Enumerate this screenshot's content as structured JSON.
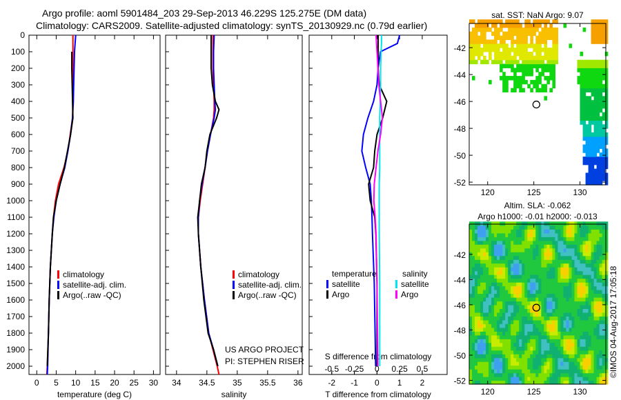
{
  "title_line1": "Argo profile: aoml 5901484_203 29-Sep-2013 46.229S 125.275E (DM data)",
  "title_line2": "Climatology: CARS2009. Satellite-adjusted climatology: synTS_20130929.nc (0.79d earlier)",
  "watermark": "©IMOS 04-Aug-2017 17:05:18",
  "colors": {
    "climatology": "#ff0000",
    "satellite": "#0000ff",
    "argo": "#000000",
    "s_satellite": "#00e5ee",
    "s_argo": "#ff00ff"
  },
  "chart_data": [
    {
      "type": "line",
      "id": "temperature",
      "xlabel": "temperature (deg C)",
      "xlim": [
        -2,
        31.7
      ],
      "ylim": [
        2050,
        0
      ],
      "xticks": [
        0,
        5,
        10,
        15,
        20,
        25,
        30
      ],
      "yticks": [
        0,
        100,
        200,
        300,
        400,
        500,
        600,
        700,
        800,
        900,
        1000,
        1100,
        1200,
        1300,
        1400,
        1500,
        1600,
        1700,
        1800,
        1900,
        2000
      ],
      "legend": [
        "climatology",
        "satellite-adj. clim.",
        "Argo(..raw -QC)"
      ],
      "depth": [
        0,
        100,
        200,
        300,
        400,
        500,
        600,
        700,
        800,
        900,
        1000,
        1100,
        1200,
        1400,
        1600,
        1800,
        2000,
        2050
      ],
      "series": [
        {
          "name": "climatology",
          "values": [
            9.3,
            9.3,
            9.3,
            9.3,
            9.3,
            9.2,
            8.6,
            8.0,
            7.0,
            5.6,
            4.8,
            4.3,
            4.0,
            3.5,
            3.2,
            3.0,
            2.7,
            2.6
          ]
        },
        {
          "name": "satellite-adj. clim.",
          "values": [
            10.0,
            9.7,
            9.6,
            9.5,
            9.4,
            9.2,
            8.7,
            8.0,
            7.2,
            6.0,
            5.0,
            4.4,
            4.0,
            3.5,
            3.2,
            3.0,
            2.8,
            2.7
          ]
        },
        {
          "name": "Argo(..raw -QC)",
          "values": [
            null,
            9.0,
            9.0,
            9.1,
            9.2,
            9.3,
            8.7,
            7.9,
            7.1,
            6.0,
            5.0,
            4.3,
            4.0,
            3.5,
            3.2,
            3.0,
            2.7,
            null
          ]
        }
      ]
    },
    {
      "type": "line",
      "id": "salinity",
      "xlabel": "salinity",
      "xlim": [
        33.82,
        36.07
      ],
      "ylim": [
        2050,
        0
      ],
      "xticks": [
        34,
        34.5,
        35,
        35.5,
        36
      ],
      "legend": [
        "climatology",
        "satellite-adj. clim.",
        "Argo(..raw -QC)"
      ],
      "annotation": [
        "US ARGO PROJECT",
        "PI: STEPHEN RISER"
      ],
      "depth": [
        0,
        100,
        200,
        300,
        400,
        450,
        500,
        600,
        700,
        800,
        900,
        1000,
        1100,
        1200,
        1400,
        1600,
        1800,
        1900,
        2000,
        2050
      ],
      "series": [
        {
          "name": "climatology",
          "values": [
            34.6,
            34.6,
            34.6,
            34.61,
            34.62,
            34.62,
            34.61,
            34.56,
            34.51,
            34.47,
            34.43,
            34.39,
            34.36,
            34.36,
            34.4,
            34.46,
            34.53,
            34.6,
            34.67,
            34.7
          ]
        },
        {
          "name": "satellite-adj. clim.",
          "values": [
            34.62,
            34.61,
            34.61,
            34.62,
            34.63,
            34.64,
            34.62,
            34.56,
            34.51,
            34.47,
            34.42,
            34.38,
            34.36,
            34.36,
            34.4,
            34.46,
            34.53,
            34.61,
            34.68,
            null
          ]
        },
        {
          "name": "Argo(..raw -QC)",
          "values": [
            34.57,
            34.57,
            34.57,
            34.59,
            34.64,
            34.7,
            34.66,
            34.55,
            34.5,
            34.47,
            34.41,
            34.38,
            34.35,
            34.36,
            34.4,
            34.45,
            34.52,
            34.61,
            34.68,
            null
          ]
        }
      ]
    },
    {
      "type": "line",
      "id": "difference",
      "xlabel": "T difference from climatology",
      "x2label": "S difference from climatology",
      "xlim": [
        -3.0,
        3.1
      ],
      "x2lim": [
        -0.75,
        0.775
      ],
      "ylim": [
        2050,
        0
      ],
      "xticks": [
        -2,
        -1,
        0,
        1,
        2
      ],
      "x2ticks": [
        -0.5,
        -0.25,
        0,
        0.25,
        0.5
      ],
      "x2ticklabels": [
        "-0.5",
        "-0.25",
        "0",
        "0.25",
        "0.5"
      ],
      "legend": {
        "temperature_title": "temperature",
        "salinity_title": "salinity",
        "items": [
          "satellite",
          "Argo",
          "satellite",
          "Argo"
        ]
      },
      "depth": [
        0,
        50,
        100,
        200,
        300,
        400,
        500,
        600,
        700,
        800,
        900,
        1000,
        1100,
        1200,
        1500,
        2000
      ],
      "series": [
        {
          "name": "T satellite",
          "axis": "T",
          "values": [
            1.0,
            0.9,
            0.15,
            0.05,
            0.0,
            -0.15,
            -0.4,
            -0.6,
            -0.67,
            -0.5,
            -0.3,
            -0.25,
            -0.22,
            -0.2,
            -0.12,
            -0.06
          ]
        },
        {
          "name": "T Argo",
          "axis": "T",
          "values": [
            0.05,
            0.05,
            0.05,
            0.05,
            0.1,
            0.43,
            0.25,
            0.0,
            -0.1,
            -0.15,
            -0.37,
            -0.3,
            -0.1,
            -0.05,
            0.0,
            0.0
          ]
        },
        {
          "name": "S satellite",
          "axis": "S",
          "values": [
            0.05,
            0.05,
            0.045,
            0.04,
            0.04,
            0.035,
            0.03,
            0.03,
            0.03,
            0.03,
            0.025,
            0.025,
            0.025,
            0.025,
            0.03,
            0.03
          ]
        },
        {
          "name": "S Argo",
          "axis": "S",
          "values": [
            -0.01,
            -0.005,
            0.0,
            0.01,
            0.02,
            0.04,
            0.06,
            0.04,
            0.01,
            -0.01,
            -0.03,
            -0.035,
            -0.02,
            -0.01,
            0.0,
            0.01
          ]
        }
      ]
    },
    {
      "type": "heatmap",
      "id": "sst-map",
      "title": "sat. SST: NaN Argo: 9.07",
      "xlim": [
        118,
        132.8
      ],
      "ylim": [
        -52.2,
        -40.2
      ],
      "xticks": [
        120,
        125,
        130
      ],
      "yticks": [
        -42,
        -44,
        -46,
        -48,
        -50,
        -52
      ],
      "float_position": {
        "lon": 125.275,
        "lat": -46.229
      }
    },
    {
      "type": "heatmap",
      "id": "sla-map",
      "title_line1": "Altim. SLA: -0.062",
      "title_line2": "Argo h1000: -0.01 h2000: -0.013",
      "xlim": [
        118,
        132.8
      ],
      "ylim": [
        -52.3,
        -39.6
      ],
      "xticks": [
        120,
        125,
        130
      ],
      "yticks": [
        -42,
        -44,
        -46,
        -48,
        -50,
        -52
      ],
      "float_position": {
        "lon": 125.275,
        "lat": -46.229
      }
    }
  ]
}
